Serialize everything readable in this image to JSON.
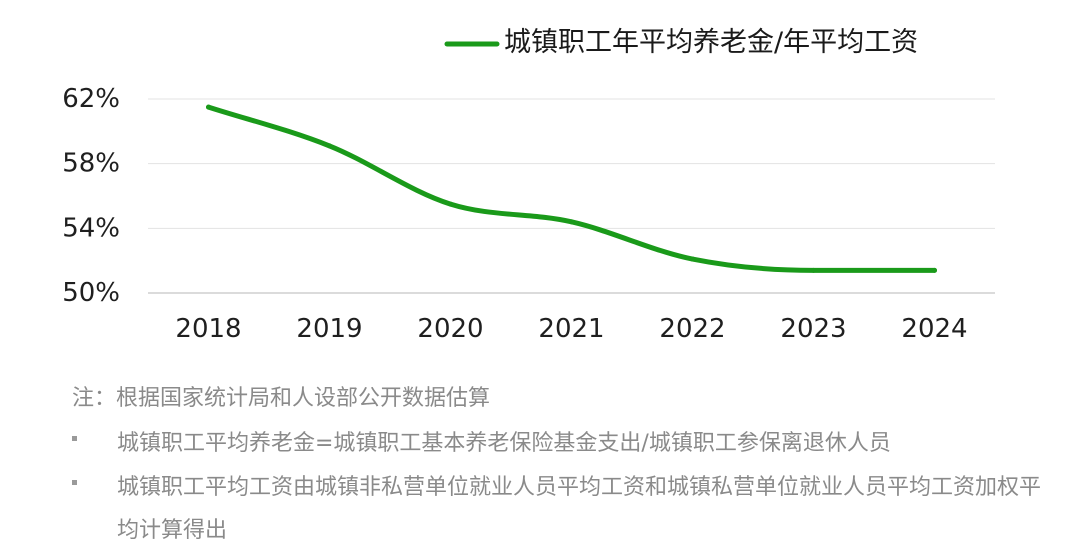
{
  "chart_data": {
    "type": "line",
    "title": "",
    "xlabel": "",
    "ylabel": "",
    "x": [
      "2018",
      "2019",
      "2020",
      "2021",
      "2022",
      "2023",
      "2024"
    ],
    "ylim": [
      50,
      62
    ],
    "yticks": [
      "62%",
      "58%",
      "54%",
      "50%"
    ],
    "ytick_values": [
      62,
      58,
      54,
      50
    ],
    "grid": true,
    "legend_position": "top-right",
    "series": [
      {
        "name": "城镇职工年平均养老金/年平均工资",
        "values": [
          61.5,
          59.1,
          55.5,
          54.4,
          52.1,
          51.4,
          51.4
        ],
        "color": "#1a9a1a"
      }
    ]
  },
  "notes": {
    "title": "注：根据国家统计局和人设部公开数据估算",
    "items": [
      "城镇职工平均养老金=城镇职工基本养老保险基金支出/城镇职工参保离退休人员",
      "城镇职工平均工资由城镇非私营单位就业人员平均工资和城镇私营单位就业人员平均工资加权平均计算得出"
    ]
  }
}
